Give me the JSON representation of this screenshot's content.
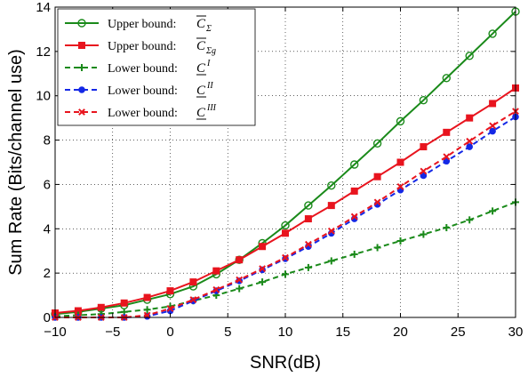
{
  "chart_data": {
    "type": "line",
    "title": "",
    "xlabel": "SNR(dB)",
    "ylabel": "Sum Rate (Bits/channel use)",
    "xlim": [
      -10,
      30
    ],
    "ylim": [
      0,
      14
    ],
    "xticks": [
      -10,
      -5,
      0,
      5,
      10,
      15,
      20,
      25,
      30
    ],
    "xtick_labels": [
      "−10",
      "−5",
      "0",
      "5",
      "10",
      "15",
      "20",
      "25",
      "30"
    ],
    "yticks": [
      0,
      2,
      4,
      6,
      8,
      10,
      12,
      14
    ],
    "ytick_labels": [
      "0",
      "2",
      "4",
      "6",
      "8",
      "10",
      "12",
      "14"
    ],
    "grid": true,
    "legend_position": "top-left",
    "x": [
      -10,
      -8,
      -6,
      -4,
      -2,
      0,
      2,
      4,
      6,
      8,
      10,
      12,
      14,
      16,
      18,
      20,
      22,
      24,
      26,
      28,
      30
    ],
    "series": [
      {
        "name": "Upper bound: C̅Σ",
        "legend_prefix": "Upper bound:",
        "legend_symbol": "C",
        "legend_sub": "Σ",
        "legend_sup": "",
        "symbol_line": "over",
        "color": "#1a8a1a",
        "line_style": "solid",
        "marker": "circle",
        "values": [
          0.15,
          0.25,
          0.4,
          0.55,
          0.8,
          1.05,
          1.4,
          1.95,
          2.6,
          3.35,
          4.15,
          5.05,
          5.95,
          6.9,
          7.85,
          8.85,
          9.8,
          10.8,
          11.8,
          12.8,
          13.8
        ]
      },
      {
        "name": "Upper bound: C̅Σg",
        "legend_prefix": "Upper bound:",
        "legend_symbol": "C",
        "legend_sub": "Σg",
        "legend_sup": "",
        "symbol_line": "over",
        "color": "#e8141e",
        "line_style": "solid",
        "marker": "square",
        "values": [
          0.2,
          0.3,
          0.45,
          0.65,
          0.9,
          1.2,
          1.6,
          2.1,
          2.6,
          3.2,
          3.8,
          4.45,
          5.05,
          5.7,
          6.35,
          7.0,
          7.7,
          8.35,
          9.0,
          9.65,
          10.35
        ]
      },
      {
        "name": "Lower bound: C̲I",
        "legend_prefix": "Lower bound:",
        "legend_symbol": "C",
        "legend_sub": "",
        "legend_sup": "I",
        "symbol_line": "under",
        "color": "#1a8a1a",
        "line_style": "dashed",
        "marker": "plus",
        "values": [
          0.05,
          0.1,
          0.15,
          0.25,
          0.35,
          0.5,
          0.75,
          1.0,
          1.3,
          1.6,
          1.95,
          2.25,
          2.55,
          2.85,
          3.15,
          3.45,
          3.75,
          4.05,
          4.4,
          4.8,
          5.2
        ]
      },
      {
        "name": "Lower bound: C̲II",
        "legend_prefix": "Lower bound:",
        "legend_symbol": "C",
        "legend_sub": "",
        "legend_sup": "II",
        "symbol_line": "under",
        "color": "#1428e6",
        "line_style": "dashed",
        "marker": "dot",
        "values": [
          0.0,
          0.0,
          0.0,
          0.0,
          0.05,
          0.3,
          0.75,
          1.2,
          1.65,
          2.15,
          2.65,
          3.2,
          3.8,
          4.45,
          5.1,
          5.75,
          6.4,
          7.05,
          7.7,
          8.4,
          9.05
        ]
      },
      {
        "name": "Lower bound: C̲III",
        "legend_prefix": "Lower bound:",
        "legend_symbol": "C",
        "legend_sub": "",
        "legend_sup": "III",
        "symbol_line": "under",
        "color": "#e8141e",
        "line_style": "dashed",
        "marker": "cross",
        "values": [
          0.0,
          0.0,
          0.0,
          0.0,
          0.1,
          0.4,
          0.8,
          1.25,
          1.7,
          2.2,
          2.7,
          3.3,
          3.9,
          4.55,
          5.2,
          5.9,
          6.6,
          7.25,
          7.95,
          8.65,
          9.3
        ]
      }
    ]
  }
}
